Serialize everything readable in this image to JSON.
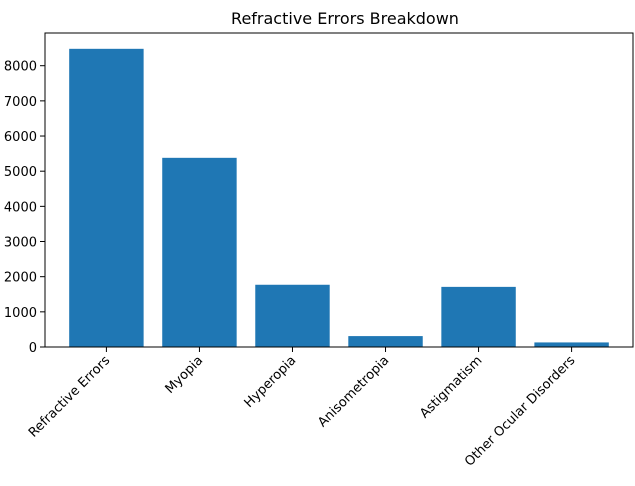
{
  "chart_data": {
    "type": "bar",
    "title": "Refractive Errors Breakdown",
    "xlabel": "",
    "ylabel": "",
    "categories": [
      "Refractive Errors",
      "Myopia",
      "Hyperopia",
      "Anisometropia",
      "Astigmatism",
      "Other Ocular Disorders"
    ],
    "values": [
      8480,
      5380,
      1770,
      310,
      1710,
      130
    ],
    "ylim": [
      0,
      8930
    ],
    "yticks": [
      0,
      1000,
      2000,
      3000,
      4000,
      5000,
      6000,
      7000,
      8000
    ],
    "grid": false,
    "bar_color": "#1f77b4"
  }
}
